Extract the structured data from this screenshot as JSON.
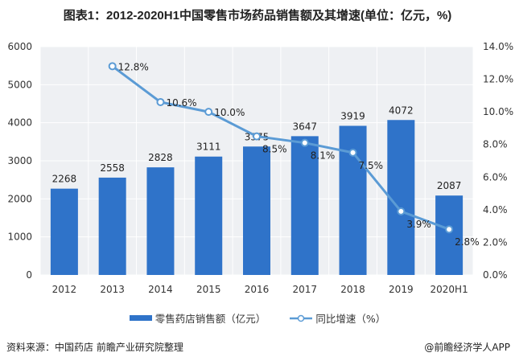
{
  "title": "图表1：2012-2020H1中国零售市场药品销售额及其增速(单位：亿元，%)",
  "chart_data": {
    "type": "bar+line",
    "categories": [
      "2012",
      "2013",
      "2014",
      "2015",
      "2016",
      "2017",
      "2018",
      "2019",
      "2020H1"
    ],
    "series": [
      {
        "name": "零售药店销售额（亿元）",
        "type": "bar",
        "axis": "left",
        "values": [
          2268,
          2558,
          2828,
          3111,
          3375,
          3647,
          3919,
          4072,
          2087
        ],
        "color": "#2f73c9"
      },
      {
        "name": "同比增速（%）",
        "type": "line",
        "axis": "right",
        "values": [
          null,
          12.8,
          10.6,
          10.0,
          8.5,
          8.1,
          7.5,
          3.9,
          2.8
        ],
        "labels": [
          "",
          "12.8%",
          "10.6%",
          "10.0%",
          "8.5%",
          "8.1%",
          "7.5%",
          "3.9%",
          "2.8%"
        ],
        "color": "#5b9bd5"
      }
    ],
    "yleft": {
      "lim": [
        0,
        6000
      ],
      "ticks": [
        "0",
        "1000",
        "2000",
        "3000",
        "4000",
        "5000",
        "6000"
      ]
    },
    "yright": {
      "lim": [
        0,
        14
      ],
      "ticks": [
        "0.0%",
        "2.0%",
        "4.0%",
        "6.0%",
        "8.0%",
        "10.0%",
        "12.0%",
        "14.0%"
      ]
    },
    "grid": true,
    "legend": "bottom"
  },
  "footer": {
    "source": "资料来源：中国药店  前瞻产业研究院整理",
    "brand": "@前瞻经济学人APP"
  }
}
